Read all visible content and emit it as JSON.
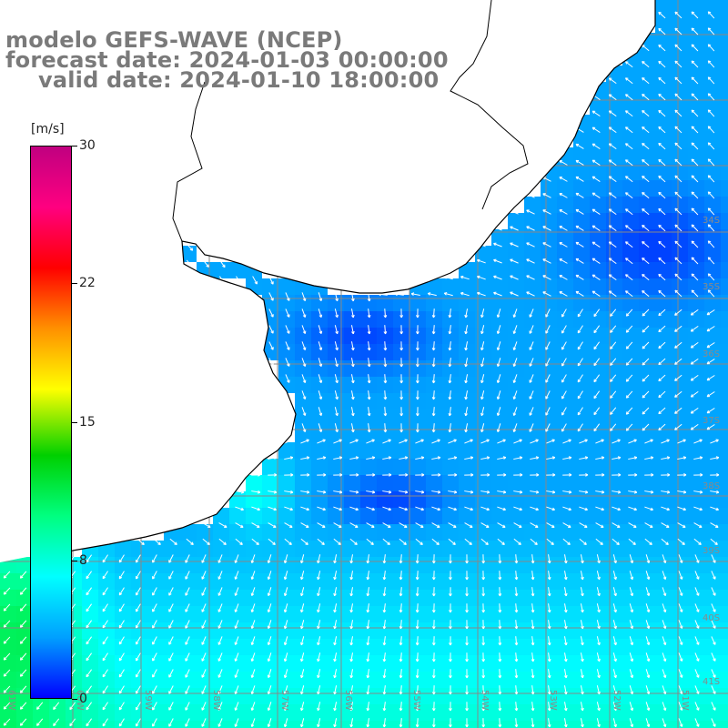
{
  "title": {
    "line1": "modelo GEFS-WAVE (NCEP)",
    "line2": "forecast date: 2024-01-03 00:00:00",
    "line3": "valid date: 2024-01-10 18:00:00"
  },
  "colorbar": {
    "unit": "[m/s]",
    "ticks": [
      "30",
      "22",
      "15",
      "8",
      "0"
    ],
    "tick_values": [
      30,
      22,
      15,
      8,
      0
    ],
    "colors": [
      "#0000ff",
      "#00a0ff",
      "#00ffff",
      "#00ff80",
      "#00d000",
      "#ffff00",
      "#ff9000",
      "#ff0000",
      "#ff0080",
      "#c00080"
    ]
  },
  "map": {
    "lat_labels": [
      "34S",
      "35S",
      "36S",
      "37S",
      "38S",
      "39S",
      "40S",
      "41S"
    ],
    "lon_labels": [
      "61W",
      "60W",
      "59W",
      "58W",
      "57W",
      "56W",
      "55W",
      "54W",
      "53W",
      "52W",
      "51W"
    ],
    "land_color": "#ffffff",
    "grid_color": "#888888",
    "arrow_color": "#ffffff"
  }
}
